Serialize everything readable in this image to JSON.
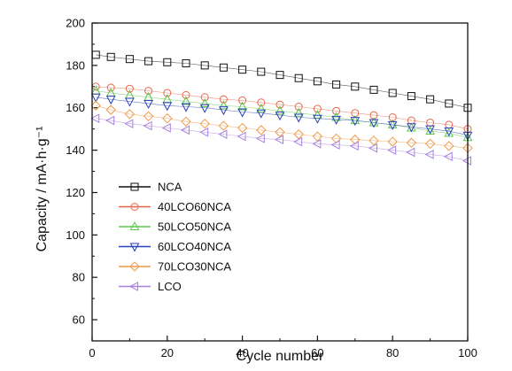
{
  "chart_data": {
    "type": "scatter",
    "xlabel": "Cycle number",
    "ylabel": "Capacity / mA·h·g⁻¹",
    "xlim": [
      0,
      100
    ],
    "ylim": [
      50,
      200
    ],
    "xticks": [
      "0",
      "20",
      "40",
      "60",
      "80",
      "100"
    ],
    "yticks": [
      "60",
      "80",
      "100",
      "120",
      "140",
      "160",
      "180",
      "200"
    ],
    "grid": false,
    "legend_position": "lower-left",
    "series": [
      {
        "name": "NCA",
        "color": "#111111",
        "marker": "square",
        "x": [
          1,
          5,
          10,
          15,
          20,
          25,
          30,
          35,
          40,
          45,
          50,
          55,
          60,
          65,
          70,
          75,
          80,
          85,
          90,
          95,
          100
        ],
        "y": [
          185,
          184,
          183,
          182,
          181.5,
          181,
          180,
          179,
          178,
          177,
          175.5,
          174,
          172.5,
          171,
          170,
          168.5,
          167,
          165.5,
          164,
          162,
          160
        ]
      },
      {
        "name": "40LCO60NCA",
        "color": "#e8664a",
        "marker": "circle",
        "x": [
          1,
          5,
          10,
          15,
          20,
          25,
          30,
          35,
          40,
          45,
          50,
          55,
          60,
          65,
          70,
          75,
          80,
          85,
          90,
          95,
          100
        ],
        "y": [
          170,
          169.5,
          169,
          168,
          167,
          166,
          165,
          164,
          163.5,
          162.5,
          161.5,
          160.5,
          159.5,
          158.5,
          157.5,
          156.5,
          155.5,
          154,
          153,
          152,
          150
        ]
      },
      {
        "name": "50LCO50NCA",
        "color": "#5cc84a",
        "marker": "triangle-up",
        "x": [
          1,
          5,
          10,
          15,
          20,
          25,
          30,
          35,
          40,
          45,
          50,
          55,
          60,
          65,
          70,
          75,
          80,
          85,
          90,
          95,
          100
        ],
        "y": [
          168,
          167,
          166,
          165,
          164,
          163,
          162,
          161,
          160.5,
          159.5,
          158.5,
          157.5,
          156.5,
          155.5,
          154,
          153,
          152,
          150.5,
          149,
          148,
          146
        ]
      },
      {
        "name": "60LCO40NCA",
        "color": "#2840b8",
        "marker": "triangle-down",
        "x": [
          1,
          5,
          10,
          15,
          20,
          25,
          30,
          35,
          40,
          45,
          50,
          55,
          60,
          65,
          70,
          75,
          80,
          85,
          90,
          95,
          100
        ],
        "y": [
          165,
          164,
          163,
          162,
          161,
          160.5,
          160,
          159,
          158,
          157.5,
          156.5,
          155.5,
          155,
          154.5,
          154,
          153,
          152,
          151,
          150,
          149,
          147
        ]
      },
      {
        "name": "70LCO30NCA",
        "color": "#f09a48",
        "marker": "diamond",
        "x": [
          1,
          5,
          10,
          15,
          20,
          25,
          30,
          35,
          40,
          45,
          50,
          55,
          60,
          65,
          70,
          75,
          80,
          85,
          90,
          95,
          100
        ],
        "y": [
          161,
          159,
          157,
          156,
          155,
          153.5,
          152.5,
          151.5,
          150.5,
          149.5,
          148.5,
          147.5,
          146.5,
          145.5,
          145,
          144.5,
          144,
          143.5,
          143,
          142,
          141
        ]
      },
      {
        "name": "LCO",
        "color": "#a880e0",
        "marker": "triangle-left",
        "x": [
          1,
          5,
          10,
          15,
          20,
          25,
          30,
          35,
          40,
          45,
          50,
          55,
          60,
          65,
          70,
          75,
          80,
          85,
          90,
          95,
          100
        ],
        "y": [
          155,
          154,
          152.5,
          151.5,
          150.5,
          149.5,
          148.5,
          147.5,
          146.5,
          145.5,
          145,
          144,
          143,
          142.5,
          142,
          141,
          140,
          139,
          138,
          137,
          135
        ]
      }
    ]
  }
}
